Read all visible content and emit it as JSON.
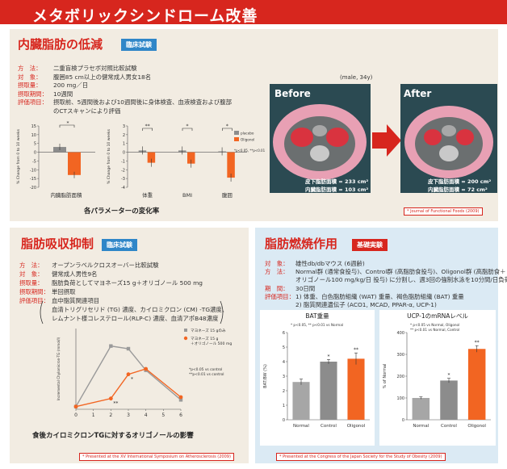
{
  "page_title": "メタボリックシンドローム改善",
  "colors": {
    "accent": "#d7261e",
    "orange": "#f26522",
    "grey": "#8c8c8c",
    "badge_blue": "#2f86c8"
  },
  "section1": {
    "title": "内臓脂肪の低減",
    "badge": "臨床試験",
    "rows": [
      {
        "label": "方　法：",
        "text": "二重盲検プラセボ対照比較試験"
      },
      {
        "label": "対　象：",
        "text": "腹囲85 cm以上の健常成人男女18名"
      },
      {
        "label": "摂取量：",
        "text": "200 mg／日"
      },
      {
        "label": "摂取期間：",
        "text": "10週間"
      },
      {
        "label": "評価項目：",
        "text": "摂取前、5週間後および10週間後に身体検査、血液検査および腹部"
      },
      {
        "label": "",
        "text": "のCTスキャンにより評価"
      }
    ],
    "caption": "各パラメーターの変化率",
    "ct_subject": "(male, 34y)",
    "before_label": "Before",
    "after_label": "After",
    "before_sub": "皮下脂肪面積 = 233 cm²",
    "before_visceral": "内臓脂肪面積 = 103 cm²",
    "after_sub": "皮下脂肪面積 = 200 cm²",
    "after_visceral": "内臓脂肪面積 = 72 cm²",
    "citation": "* Journal of Functional Foods (2009)"
  },
  "section2": {
    "title": "脂肪吸収抑制",
    "badge": "臨床試験",
    "rows": [
      {
        "label": "方　法：",
        "text": "オープンラベルクロスオーバー比較試験"
      },
      {
        "label": "対　象：",
        "text": "健常成人男性9名"
      },
      {
        "label": "摂取量：",
        "text": "脂肪負荷としてマヨネーズ15 g＋オリゴノール 500 mg"
      },
      {
        "label": "摂取期間：",
        "text": "単回摂取"
      },
      {
        "label": "評価項目：",
        "text": "血中脂質関連項目"
      },
      {
        "label": "",
        "text": "血清トリグリセリド (TG) 濃度、カイロミクロン (CM) -TG濃度、"
      },
      {
        "label": "",
        "text": "レムナント様コレステロール(RLP-C) 濃度、血清アポB48濃度"
      }
    ],
    "caption": "食後カイロミクロンTGに対するオリゴノールの影響",
    "citation": "* Presented at the XV International Symposium on Atherosclerosis (2009)"
  },
  "section3": {
    "title": "脂肪燃焼作用",
    "badge": "基礎実験",
    "rows": [
      {
        "label": "対　象：",
        "text": "雄性db/dbマウス (6週齢)"
      },
      {
        "label": "方　法：",
        "text": "Normal群 (通常食投与)、Control群 (高脂肪食投与)、Oligonol群 (高脂肪食＋"
      },
      {
        "label": "",
        "text": "オリゴノール100 mg/kg/日 投与) に分割し、週3回の強制水泳を10分間/日負荷"
      },
      {
        "label": "期　間：",
        "text": "30日間"
      },
      {
        "label": "評価項目：",
        "text": "1) 体重、白色脂肪組織 (WAT) 重量、褐色脂肪組織 (BAT) 重量"
      },
      {
        "label": "",
        "text": "2) 脂質関連遺伝子 (ACO1, MCAD, PPAR-α, UCP-1)"
      }
    ],
    "citation": "* Presented at the Congress of the Japan Society for the Study of Obesity (2009)"
  },
  "chart_data": [
    {
      "type": "bar",
      "title": "",
      "ylabel": "% Change from 0 to 10 weeks",
      "categories": [
        "内臓脂肪面積"
      ],
      "ylim": [
        -20,
        15
      ],
      "yticks": [
        15,
        10,
        5,
        0,
        -5,
        -10,
        -15,
        -20
      ],
      "series": [
        {
          "name": "placebo",
          "values": [
            3
          ],
          "color": "#8c8c8c"
        },
        {
          "name": "Oligonol",
          "values": [
            -13
          ],
          "color": "#f26522"
        }
      ],
      "sig": [
        "*"
      ]
    },
    {
      "type": "bar",
      "title": "",
      "ylabel": "% Change from 0 to 10 weeks",
      "categories": [
        "体重",
        "BMI",
        "腹囲"
      ],
      "ylim": [
        -4,
        3
      ],
      "yticks": [
        3,
        2,
        1,
        0,
        -1,
        -2,
        -3,
        -4
      ],
      "series": [
        {
          "name": "placebo",
          "values": [
            0.2,
            0.2,
            0.1
          ],
          "color": "#8c8c8c"
        },
        {
          "name": "Oligonol",
          "values": [
            -1.2,
            -1.3,
            -2.9
          ],
          "color": "#f26522"
        }
      ],
      "sig": [
        "**",
        "*",
        "*"
      ],
      "annotation": "*p<0.05, **p<0.01"
    },
    {
      "type": "line",
      "title": "",
      "ylabel": "Incremental Chylomicron-TG (mmol/l)",
      "x": [
        0,
        1,
        2,
        3,
        4,
        5,
        6
      ],
      "xlim": [
        0,
        6
      ],
      "ylim": [
        0,
        0.6
      ],
      "series": [
        {
          "name": "マヨネーズ 15 gのみ",
          "x": [
            0,
            2,
            3,
            4,
            6
          ],
          "values": [
            0.02,
            0.47,
            0.45,
            0.29,
            0.07
          ],
          "color": "#9a9a9a"
        },
        {
          "name": "マヨネーズ 15 g ＋オリゴノール 500 mg",
          "x": [
            0,
            2,
            3,
            4,
            6
          ],
          "values": [
            0.02,
            0.08,
            0.26,
            0.3,
            0.09
          ],
          "color": "#f26522"
        }
      ],
      "sig_labels": [
        "**",
        "*"
      ],
      "annotation": "*p<0.05 vs control\n**p<0.01 vs control"
    },
    {
      "type": "bar",
      "title": "BAT重量",
      "ylabel": "BAT/BW (%)",
      "categories": [
        "Normal",
        "Control",
        "Oligonol"
      ],
      "ylim": [
        0,
        6
      ],
      "values": [
        2.6,
        4.0,
        4.2
      ],
      "errors": [
        0.2,
        0.15,
        0.4
      ],
      "sig": [
        "",
        "*",
        "**"
      ],
      "annotation": "* p<0.05, ** p<0.01 vs Normal"
    },
    {
      "type": "bar",
      "title": "UCP-1のmRNAレベル",
      "ylabel": "% of Normal",
      "categories": [
        "Normal",
        "Control",
        "Oligonol"
      ],
      "ylim": [
        0,
        400
      ],
      "values": [
        100,
        180,
        325
      ],
      "errors": [
        5,
        10,
        15
      ],
      "sig": [
        "",
        "*",
        "**"
      ],
      "annotation": "* p<0.05 vs Normal, Oligonol\n** p<0.01 vs Normal, Control"
    }
  ]
}
